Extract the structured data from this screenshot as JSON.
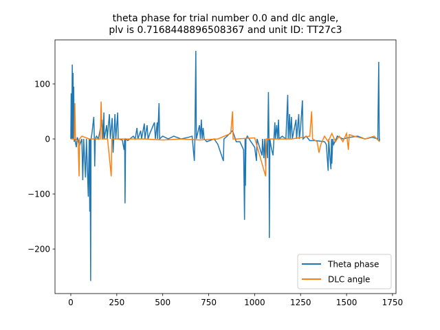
{
  "chart_data": {
    "type": "line",
    "title": [
      "theta phase for trial number 0.0 and dlc angle,",
      "plv is 0.7168448896508367 and unit ID: TT27c3"
    ],
    "xlim": [
      -86,
      1769
    ],
    "ylim": [
      -281,
      180
    ],
    "xticks": [
      0,
      250,
      500,
      750,
      1000,
      1250,
      1500,
      1750
    ],
    "yticks": [
      {
        "value": -200,
        "label": "−200"
      },
      {
        "value": -100,
        "label": "−100"
      },
      0,
      100
    ],
    "legend": "lower right",
    "series": [
      {
        "name": "Theta phase",
        "color": "#1f77b4",
        "x": [
          0,
          2,
          5,
          8,
          10,
          12,
          14,
          16,
          18,
          22,
          30,
          35,
          50,
          60,
          65,
          70,
          80,
          85,
          95,
          100,
          103,
          105,
          108,
          110,
          115,
          125,
          128,
          130,
          133,
          140,
          150,
          170,
          175,
          180,
          182,
          195,
          198,
          210,
          215,
          225,
          230,
          240,
          245,
          255,
          258,
          280,
          290,
          293,
          295,
          298,
          310,
          340,
          350,
          360,
          365,
          380,
          385,
          400,
          403,
          415,
          420,
          430,
          455,
          460,
          470,
          472,
          480,
          483,
          500,
          530,
          560,
          600,
          640,
          660,
          672,
          675,
          680,
          683,
          700,
          705,
          710,
          715,
          720,
          725,
          740,
          780,
          800,
          830,
          833,
          850,
          880,
          900,
          920,
          940,
          945,
          948,
          950,
          953,
          960,
          980,
          1000,
          1010,
          1013,
          1040,
          1043,
          1050,
          1055,
          1060,
          1063,
          1070,
          1075,
          1078,
          1080,
          1083,
          1090,
          1100,
          1105,
          1110,
          1113,
          1120,
          1125,
          1130,
          1133,
          1150,
          1170,
          1180,
          1183,
          1190,
          1193,
          1200,
          1205,
          1225,
          1228,
          1240,
          1243,
          1250,
          1260,
          1263,
          1280,
          1300,
          1330,
          1380,
          1390,
          1400,
          1403,
          1410,
          1415,
          1418,
          1420,
          1425,
          1430,
          1450,
          1480,
          1520,
          1560,
          1600,
          1640,
          1670,
          1675,
          1678,
          1680
        ],
        "values": [
          0,
          83,
          0,
          135,
          0,
          120,
          0,
          95,
          -5,
          0,
          -15,
          3,
          -10,
          0,
          -75,
          0,
          -70,
          0,
          -105,
          0,
          -132,
          0,
          -258,
          0,
          10,
          40,
          0,
          -50,
          0,
          5,
          0,
          35,
          0,
          48,
          0,
          25,
          0,
          45,
          0,
          38,
          -25,
          45,
          0,
          48,
          0,
          -2,
          -20,
          0,
          -117,
          0,
          -3,
          5,
          0,
          20,
          0,
          15,
          0,
          28,
          0,
          25,
          0,
          10,
          30,
          0,
          30,
          0,
          65,
          0,
          5,
          0,
          5,
          0,
          3,
          5,
          -40,
          0,
          160,
          0,
          25,
          0,
          35,
          0,
          20,
          0,
          -5,
          0,
          -10,
          -40,
          0,
          5,
          15,
          -5,
          -5,
          -20,
          -147,
          0,
          -85,
          0,
          5,
          -5,
          -15,
          -40,
          0,
          -30,
          0,
          -35,
          0,
          -50,
          0,
          -35,
          85,
          0,
          -180,
          0,
          -15,
          -30,
          0,
          30,
          0,
          25,
          0,
          35,
          0,
          5,
          0,
          80,
          0,
          45,
          0,
          40,
          0,
          35,
          0,
          45,
          0,
          20,
          70,
          0,
          5,
          -3,
          -3,
          -5,
          -10,
          -58,
          0,
          -35,
          -55,
          0,
          -45,
          0,
          -10,
          5,
          0,
          3,
          5,
          0,
          3,
          0,
          140,
          -5,
          0
        ]
      },
      {
        "name": "DLC angle",
        "color": "#ff7f0e",
        "x": [
          0,
          15,
          18,
          22,
          25,
          40,
          45,
          48,
          60,
          100,
          160,
          165,
          170,
          200,
          220,
          223,
          250,
          300,
          400,
          500,
          600,
          700,
          800,
          870,
          880,
          883,
          900,
          1000,
          1060,
          1063,
          1100,
          1200,
          1300,
          1310,
          1315,
          1340,
          1350,
          1360,
          1380,
          1400,
          1420,
          1440,
          1460,
          1480,
          1500,
          1510,
          1515,
          1540,
          1600,
          1650,
          1680
        ],
        "values": [
          0,
          0,
          -3,
          65,
          0,
          -5,
          -68,
          0,
          5,
          0,
          0,
          68,
          0,
          0,
          -68,
          0,
          0,
          0,
          0,
          -2,
          0,
          -2,
          0,
          10,
          50,
          0,
          0,
          2,
          -68,
          0,
          0,
          0,
          5,
          50,
          0,
          -5,
          -25,
          -10,
          5,
          -5,
          10,
          -5,
          5,
          -5,
          10,
          -20,
          8,
          5,
          0,
          5,
          -5
        ]
      }
    ]
  }
}
